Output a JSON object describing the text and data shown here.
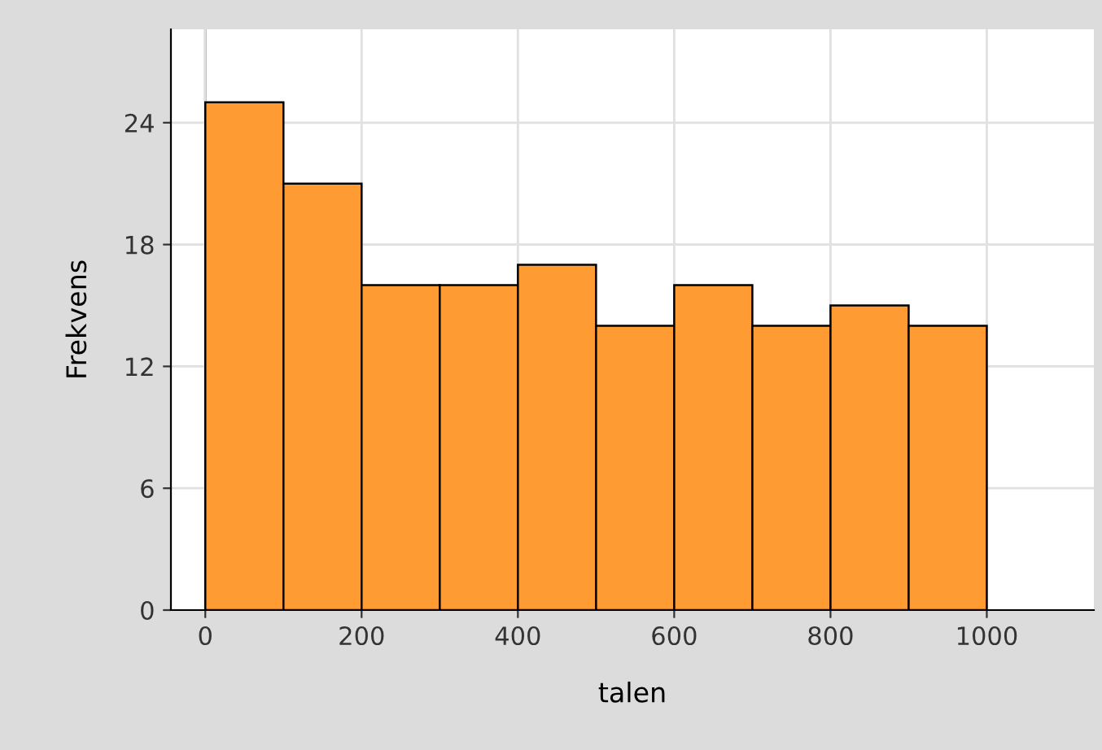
{
  "chart_data": {
    "type": "histogram",
    "xlabel": "talen",
    "ylabel": "Frekvens",
    "bins": [
      0,
      100,
      200,
      300,
      400,
      500,
      600,
      700,
      800,
      900,
      1000
    ],
    "values": [
      25,
      21,
      16,
      16,
      17,
      14,
      16,
      14,
      15,
      14
    ],
    "color": "#ff9b33",
    "xlim": [
      -44,
      1137
    ],
    "ylim": [
      0,
      28.6
    ],
    "xticks": [
      0,
      200,
      400,
      600,
      800,
      1000
    ],
    "yticks": [
      0,
      6,
      12,
      18,
      24
    ],
    "grid": true
  }
}
